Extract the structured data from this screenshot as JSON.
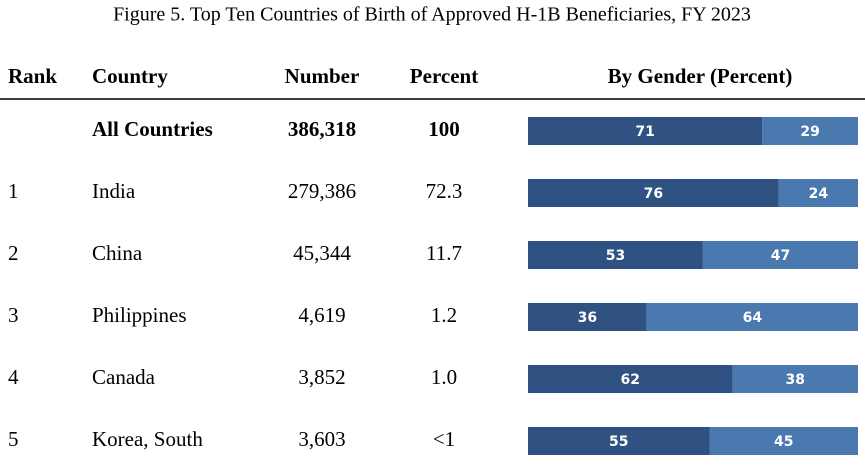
{
  "title": "Figure 5. Top Ten Countries of Birth of Approved H-1B Beneficiaries, FY 2023",
  "table": {
    "header": [
      "Rank",
      "Country",
      "Number",
      "Percent",
      "By Gender (Percent)"
    ],
    "bar_colors": [
      "#2f5283",
      "#4a79af"
    ],
    "rows": [
      {
        "country": "All Countries",
        "number": "386,318",
        "percent": "100",
        "gender": [
          71,
          29
        ]
      },
      {
        "rank": "1",
        "country": "India",
        "number": "279,386",
        "percent": "72.3",
        "gender": [
          76,
          24
        ]
      },
      {
        "rank": "2",
        "country": "China",
        "number": "45,344",
        "percent": "11.7",
        "gender": [
          53,
          47
        ]
      },
      {
        "rank": "3",
        "country": "Philippines",
        "number": "4,619",
        "percent": "1.2",
        "gender": [
          36,
          64
        ]
      },
      {
        "rank": "4",
        "country": "Canada",
        "number": "3,852",
        "percent": "1.0",
        "gender": [
          62,
          38
        ]
      },
      {
        "rank": "5",
        "country": "Korea, South",
        "number": "3,603",
        "percent": "<1",
        "gender": [
          55,
          45
        ]
      }
    ]
  }
}
